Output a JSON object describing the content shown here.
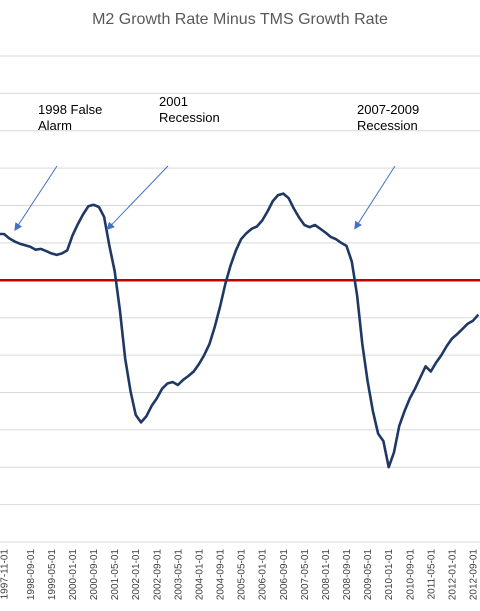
{
  "chart_data": {
    "type": "line",
    "title": "M2 Growth Rate Minus TMS Growth Rate",
    "xlabel": "",
    "ylabel": "",
    "grid": true,
    "x_tick_labels": [
      "1997-11-01",
      "1998-09-01",
      "1999-05-01",
      "2000-01-01",
      "2000-09-01",
      "2001-05-01",
      "2002-01-01",
      "2002-09-01",
      "2003-05-01",
      "2004-01-01",
      "2004-09-01",
      "2005-05-01",
      "2006-01-01",
      "2006-09-01",
      "2007-05-01",
      "2008-01-01",
      "2008-09-01",
      "2009-05-01",
      "2010-01-01",
      "2010-09-01",
      "2011-05-01",
      "2012-01-01",
      "2012-09-01"
    ],
    "series": [
      {
        "name": "",
        "color": "#1f3864",
        "x": [
          "1997-09-01",
          "1997-11-01",
          "1998-01-01",
          "1998-03-01",
          "1998-05-01",
          "1998-07-01",
          "1998-09-01",
          "1998-11-01",
          "1999-01-01",
          "1999-03-01",
          "1999-05-01",
          "1999-07-01",
          "1999-09-01",
          "1999-11-01",
          "2000-01-01",
          "2000-03-01",
          "2000-05-01",
          "2000-07-01",
          "2000-09-01",
          "2000-11-01",
          "2001-01-01",
          "2001-03-01",
          "2001-05-01",
          "2001-07-01",
          "2001-09-01",
          "2001-11-01",
          "2002-01-01",
          "2002-03-01",
          "2002-05-01",
          "2002-07-01",
          "2002-09-01",
          "2002-11-01",
          "2003-01-01",
          "2003-03-01",
          "2003-05-01",
          "2003-07-01",
          "2003-09-01",
          "2003-11-01",
          "2004-01-01",
          "2004-03-01",
          "2004-05-01",
          "2004-07-01",
          "2004-09-01",
          "2004-11-01",
          "2005-01-01",
          "2005-03-01",
          "2005-05-01",
          "2005-07-01",
          "2005-09-01",
          "2005-11-01",
          "2006-01-01",
          "2006-03-01",
          "2006-05-01",
          "2006-07-01",
          "2006-09-01",
          "2006-11-01",
          "2007-01-01",
          "2007-03-01",
          "2007-05-01",
          "2007-07-01",
          "2007-09-01",
          "2007-11-01",
          "2008-01-01",
          "2008-03-01",
          "2008-05-01",
          "2008-07-01",
          "2008-09-01",
          "2008-11-01",
          "2009-01-01",
          "2009-03-01",
          "2009-05-01",
          "2009-07-01",
          "2009-09-01",
          "2009-11-01",
          "2010-01-01",
          "2010-03-01",
          "2010-05-01",
          "2010-07-01",
          "2010-09-01",
          "2010-11-01",
          "2011-01-01",
          "2011-03-01",
          "2011-05-01",
          "2011-07-01",
          "2011-09-01",
          "2011-11-01",
          "2012-01-01",
          "2012-03-01",
          "2012-05-01",
          "2012-07-01",
          "2012-09-01",
          "2012-11-01"
        ],
        "y": [
          0.62,
          0.62,
          0.56,
          0.52,
          0.49,
          0.47,
          0.45,
          0.41,
          0.42,
          0.39,
          0.36,
          0.34,
          0.36,
          0.4,
          0.6,
          0.75,
          0.88,
          0.99,
          1.01,
          0.98,
          0.85,
          0.46,
          0.12,
          -0.4,
          -1.05,
          -1.48,
          -1.8,
          -1.9,
          -1.82,
          -1.68,
          -1.58,
          -1.45,
          -1.38,
          -1.36,
          -1.4,
          -1.33,
          -1.28,
          -1.22,
          -1.12,
          -1.0,
          -0.85,
          -0.62,
          -0.35,
          -0.05,
          0.2,
          0.4,
          0.55,
          0.63,
          0.69,
          0.72,
          0.8,
          0.92,
          1.06,
          1.14,
          1.16,
          1.1,
          0.96,
          0.84,
          0.74,
          0.71,
          0.74,
          0.69,
          0.64,
          0.58,
          0.55,
          0.5,
          0.46,
          0.25,
          -0.2,
          -0.85,
          -1.35,
          -1.75,
          -2.05,
          -2.15,
          -2.5,
          -2.3,
          -1.95,
          -1.75,
          -1.58,
          -1.45,
          -1.3,
          -1.15,
          -1.22,
          -1.1,
          -1.0,
          -0.88,
          -0.78,
          -0.72,
          -0.65,
          -0.58,
          -0.54,
          -0.46
        ]
      }
    ],
    "reference_line": {
      "y": 0,
      "color": "#c00000"
    },
    "ylim": [
      -3.5,
      3
    ],
    "annotations": [
      {
        "text_lines": [
          "1998 False",
          "Alarm"
        ],
        "points_to": {
          "x": "1998-02-01",
          "y": 0.59
        }
      },
      {
        "text_lines": [
          "2001",
          "Recession"
        ],
        "points_to": {
          "x": "2001-01-01",
          "y": 0.6
        }
      },
      {
        "text_lines": [
          "2007-2009",
          "Recession"
        ],
        "points_to": {
          "x": "2008-11-01",
          "y": 0.61
        }
      }
    ]
  }
}
